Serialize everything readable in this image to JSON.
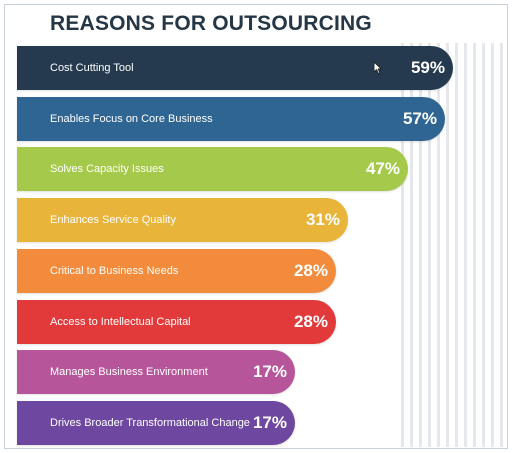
{
  "chart_data": {
    "type": "bar",
    "orientation": "horizontal",
    "title": "REASONS FOR OUTSOURCING",
    "xlabel": "",
    "ylabel": "",
    "xlim": [
      0,
      59
    ],
    "grid": false,
    "categories": [
      "Cost Cutting Tool",
      "Enables Focus on Core Business",
      "Solves Capacity Issues",
      "Enhances Service Quality",
      "Critical to Business Needs",
      "Access to Intellectual Capital",
      "Manages Business Environment",
      "Drives Broader Transformational Change"
    ],
    "values": [
      59,
      57,
      47,
      31,
      28,
      28,
      17,
      17
    ],
    "value_labels": [
      "59%",
      "57%",
      "47%",
      "31%",
      "28%",
      "28%",
      "17%",
      "17%"
    ],
    "colors": [
      "#253a4e",
      "#2f6592",
      "#a5c94a",
      "#e9b43a",
      "#f28c3c",
      "#e23a3a",
      "#b7559a",
      "#6d47a0"
    ]
  },
  "icons": {
    "cursor": "mouse-pointer-icon"
  }
}
